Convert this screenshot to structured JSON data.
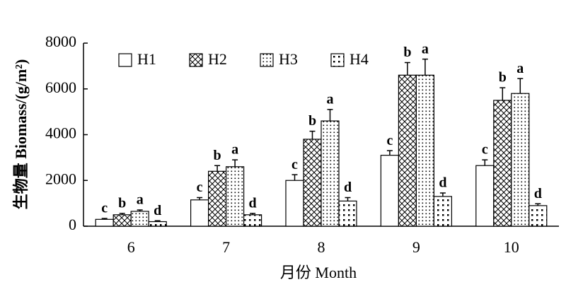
{
  "chart_data": {
    "type": "bar",
    "y_label": "生物量 Biomass/(g/m²)",
    "x_label": "月份 Month",
    "categories": [
      "6",
      "7",
      "8",
      "9",
      "10"
    ],
    "series": [
      {
        "name": "H1",
        "pattern": "none",
        "color": "#000000",
        "values": [
          300,
          1150,
          2000,
          3100,
          2650
        ],
        "errors": [
          40,
          100,
          250,
          200,
          250
        ],
        "labels": [
          "c",
          "c",
          "c",
          "c",
          "c"
        ]
      },
      {
        "name": "H2",
        "pattern": "crosshatch",
        "color": "#000000",
        "values": [
          500,
          2400,
          3800,
          6600,
          5500
        ],
        "errors": [
          60,
          250,
          350,
          550,
          550
        ],
        "labels": [
          "b",
          "b",
          "b",
          "b",
          "b"
        ]
      },
      {
        "name": "H3",
        "pattern": "dots",
        "color": "#000000",
        "values": [
          650,
          2600,
          4600,
          6600,
          5800
        ],
        "errors": [
          60,
          300,
          500,
          700,
          650
        ],
        "labels": [
          "a",
          "a",
          "a",
          "a",
          "a"
        ]
      },
      {
        "name": "H4",
        "pattern": "sparse-dots",
        "color": "#000000",
        "values": [
          200,
          500,
          1100,
          1300,
          900
        ],
        "errors": [
          40,
          60,
          150,
          150,
          80
        ],
        "labels": [
          "d",
          "d",
          "d",
          "d",
          "d"
        ]
      }
    ],
    "ylim": [
      0,
      8000
    ],
    "yticks": [
      0,
      2000,
      4000,
      6000,
      8000
    ],
    "legend": "top-left",
    "grid": false
  }
}
